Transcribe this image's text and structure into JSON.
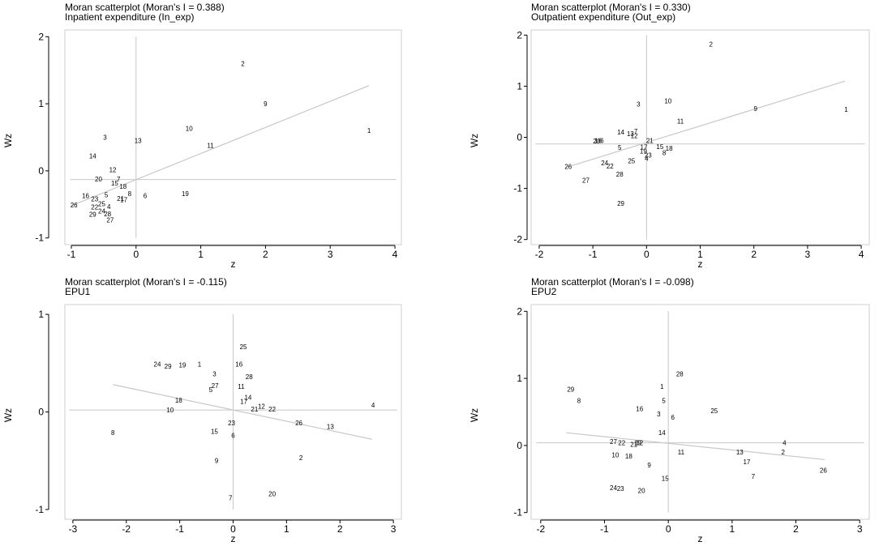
{
  "chart_data": [
    {
      "type": "scatter",
      "title": "Moran scatterplot (Moran's I = 0.388)",
      "subtitle": "Inpatient expenditure (In_exp)",
      "xlabel": "z",
      "ylabel": "Wz",
      "xlim": [
        -1.1,
        4.1
      ],
      "ylim": [
        -1.1,
        2.1
      ],
      "xticks": [
        -1,
        0,
        1,
        2,
        3,
        4
      ],
      "yticks": [
        -1,
        0,
        1,
        2
      ],
      "ref_x": 0,
      "ref_y": -0.13,
      "fit": {
        "x": [
          -1.0,
          3.6
        ],
        "y": [
          -0.52,
          1.27
        ]
      },
      "points": [
        {
          "label": "1",
          "x": 3.6,
          "y": 0.6
        },
        {
          "label": "2",
          "x": 1.65,
          "y": 1.6
        },
        {
          "label": "3",
          "x": -0.48,
          "y": 0.5
        },
        {
          "label": "4",
          "x": -0.42,
          "y": -0.53
        },
        {
          "label": "5",
          "x": -0.46,
          "y": -0.36
        },
        {
          "label": "6",
          "x": 0.14,
          "y": -0.37
        },
        {
          "label": "7",
          "x": -0.27,
          "y": -0.12
        },
        {
          "label": "8",
          "x": -0.1,
          "y": -0.34
        },
        {
          "label": "9",
          "x": 2.0,
          "y": 1.0
        },
        {
          "label": "10",
          "x": 0.82,
          "y": 0.63
        },
        {
          "label": "11",
          "x": 1.15,
          "y": 0.38
        },
        {
          "label": "12",
          "x": -0.36,
          "y": 0.02
        },
        {
          "label": "13",
          "x": 0.03,
          "y": 0.45
        },
        {
          "label": "14",
          "x": -0.67,
          "y": 0.22
        },
        {
          "label": "15",
          "x": -0.33,
          "y": -0.18
        },
        {
          "label": "16",
          "x": -0.78,
          "y": -0.37
        },
        {
          "label": "17",
          "x": -0.19,
          "y": -0.43
        },
        {
          "label": "18",
          "x": -0.2,
          "y": -0.23
        },
        {
          "label": "19",
          "x": 0.76,
          "y": -0.34
        },
        {
          "label": "20",
          "x": -0.58,
          "y": -0.12
        },
        {
          "label": "21",
          "x": -0.24,
          "y": -0.41
        },
        {
          "label": "22",
          "x": -0.64,
          "y": -0.54
        },
        {
          "label": "23",
          "x": -0.64,
          "y": -0.42
        },
        {
          "label": "24",
          "x": -0.53,
          "y": -0.6
        },
        {
          "label": "25",
          "x": -0.53,
          "y": -0.49
        },
        {
          "label": "26",
          "x": -0.96,
          "y": -0.51
        },
        {
          "label": "27",
          "x": -0.4,
          "y": -0.73
        },
        {
          "label": "28",
          "x": -0.44,
          "y": -0.64
        },
        {
          "label": "29",
          "x": -0.67,
          "y": -0.65
        }
      ]
    },
    {
      "type": "scatter",
      "title": "Moran scatterplot (Moran's I = 0.330)",
      "subtitle": "Outpatient expenditure (Out_exp)",
      "xlabel": "z",
      "ylabel": "Wz",
      "xlim": [
        -2.15,
        4.15
      ],
      "ylim": [
        -2.1,
        2.1
      ],
      "xticks": [
        -2,
        -1,
        0,
        1,
        2,
        3,
        4
      ],
      "yticks": [
        -2,
        -1,
        0,
        1,
        2
      ],
      "ref_x": 0,
      "ref_y": -0.13,
      "fit": {
        "x": [
          -1.5,
          3.7
        ],
        "y": [
          -0.59,
          1.1
        ]
      },
      "points": [
        {
          "label": "1",
          "x": 3.72,
          "y": 0.55
        },
        {
          "label": "2",
          "x": 1.2,
          "y": 1.82
        },
        {
          "label": "3",
          "x": -0.15,
          "y": 0.65
        },
        {
          "label": "4",
          "x": 0.0,
          "y": -0.41
        },
        {
          "label": "5",
          "x": -0.5,
          "y": -0.2
        },
        {
          "label": "6",
          "x": -0.83,
          "y": -0.06
        },
        {
          "label": "7",
          "x": -0.2,
          "y": 0.12
        },
        {
          "label": "8",
          "x": 0.33,
          "y": -0.3
        },
        {
          "label": "9",
          "x": 2.03,
          "y": 0.56
        },
        {
          "label": "10",
          "x": 0.4,
          "y": 0.71
        },
        {
          "label": "11",
          "x": 0.63,
          "y": 0.32
        },
        {
          "label": "12",
          "x": -0.23,
          "y": 0.03
        },
        {
          "label": "13",
          "x": -0.3,
          "y": 0.07
        },
        {
          "label": "14",
          "x": -0.48,
          "y": 0.1
        },
        {
          "label": "15",
          "x": 0.25,
          "y": -0.18
        },
        {
          "label": "16",
          "x": -0.9,
          "y": -0.06
        },
        {
          "label": "17",
          "x": -0.05,
          "y": -0.19
        },
        {
          "label": "18",
          "x": 0.42,
          "y": -0.21
        },
        {
          "label": "19",
          "x": -0.06,
          "y": -0.27
        },
        {
          "label": "20",
          "x": -0.93,
          "y": -0.07
        },
        {
          "label": "21",
          "x": 0.06,
          "y": -0.06
        },
        {
          "label": "22",
          "x": -0.68,
          "y": -0.56
        },
        {
          "label": "23",
          "x": 0.03,
          "y": -0.35
        },
        {
          "label": "24",
          "x": -0.78,
          "y": -0.5
        },
        {
          "label": "25",
          "x": -0.28,
          "y": -0.46
        },
        {
          "label": "26",
          "x": -1.46,
          "y": -0.57
        },
        {
          "label": "27",
          "x": -1.13,
          "y": -0.84
        },
        {
          "label": "28",
          "x": -0.5,
          "y": -0.72
        },
        {
          "label": "29",
          "x": -0.48,
          "y": -1.29
        }
      ]
    },
    {
      "type": "scatter",
      "title": "Moran scatterplot (Moran's I = -0.115)",
      "subtitle": "EPU1",
      "xlabel": "z",
      "ylabel": "Wz",
      "xlim": [
        -3.15,
        3.15
      ],
      "ylim": [
        -1.1,
        1.1
      ],
      "xticks": [
        -3,
        -2,
        -1,
        0,
        1,
        2,
        3
      ],
      "yticks": [
        -1,
        0,
        1
      ],
      "ref_x": 0,
      "ref_y": 0.02,
      "fit": {
        "x": [
          -2.25,
          2.6
        ],
        "y": [
          0.28,
          -0.28
        ]
      },
      "points": [
        {
          "label": "1",
          "x": -0.63,
          "y": 0.49
        },
        {
          "label": "2",
          "x": 1.27,
          "y": -0.47
        },
        {
          "label": "3",
          "x": -0.35,
          "y": 0.39
        },
        {
          "label": "4",
          "x": 2.62,
          "y": 0.07
        },
        {
          "label": "5",
          "x": -0.42,
          "y": 0.23
        },
        {
          "label": "6",
          "x": 0.0,
          "y": -0.24
        },
        {
          "label": "7",
          "x": -0.05,
          "y": -0.88
        },
        {
          "label": "8",
          "x": -2.25,
          "y": -0.21
        },
        {
          "label": "9",
          "x": -0.31,
          "y": -0.5
        },
        {
          "label": "10",
          "x": -1.18,
          "y": 0.02
        },
        {
          "label": "11",
          "x": 0.15,
          "y": 0.26
        },
        {
          "label": "12",
          "x": 0.53,
          "y": 0.06
        },
        {
          "label": "13",
          "x": 1.82,
          "y": -0.15
        },
        {
          "label": "14",
          "x": 0.28,
          "y": 0.15
        },
        {
          "label": "15",
          "x": -0.35,
          "y": -0.2
        },
        {
          "label": "16",
          "x": 0.11,
          "y": 0.49
        },
        {
          "label": "17",
          "x": 0.2,
          "y": 0.11
        },
        {
          "label": "18",
          "x": -1.02,
          "y": 0.12
        },
        {
          "label": "19",
          "x": -0.95,
          "y": 0.48
        },
        {
          "label": "20",
          "x": 0.73,
          "y": -0.84
        },
        {
          "label": "21",
          "x": 0.4,
          "y": 0.03
        },
        {
          "label": "22",
          "x": 0.73,
          "y": 0.03
        },
        {
          "label": "23",
          "x": -0.03,
          "y": -0.11
        },
        {
          "label": "24",
          "x": -1.42,
          "y": 0.49
        },
        {
          "label": "25",
          "x": 0.19,
          "y": 0.67
        },
        {
          "label": "26",
          "x": 1.23,
          "y": -0.11
        },
        {
          "label": "27",
          "x": -0.34,
          "y": 0.27
        },
        {
          "label": "28",
          "x": 0.3,
          "y": 0.36
        },
        {
          "label": "29",
          "x": -1.22,
          "y": 0.47
        }
      ]
    },
    {
      "type": "scatter",
      "title": "Moran scatterplot (Moran's I = -0.098)",
      "subtitle": "EPU2",
      "xlabel": "z",
      "ylabel": "Wz",
      "xlim": [
        -2.15,
        3.15
      ],
      "ylim": [
        -1.1,
        2.1
      ],
      "xticks": [
        -2,
        -1,
        0,
        1,
        2,
        3
      ],
      "yticks": [
        -1,
        0,
        1,
        2
      ],
      "ref_x": 0,
      "ref_y": 0.04,
      "fit": {
        "x": [
          -1.6,
          2.45
        ],
        "y": [
          0.19,
          -0.21
        ]
      },
      "points": [
        {
          "label": "1",
          "x": -0.1,
          "y": 0.88
        },
        {
          "label": "2",
          "x": 1.8,
          "y": -0.1
        },
        {
          "label": "3",
          "x": -0.15,
          "y": 0.47
        },
        {
          "label": "4",
          "x": 1.82,
          "y": 0.04
        },
        {
          "label": "5",
          "x": -0.07,
          "y": 0.67
        },
        {
          "label": "6",
          "x": 0.07,
          "y": 0.42
        },
        {
          "label": "7",
          "x": 1.33,
          "y": -0.46
        },
        {
          "label": "8",
          "x": -1.4,
          "y": 0.67
        },
        {
          "label": "9",
          "x": -0.3,
          "y": -0.29
        },
        {
          "label": "10",
          "x": -0.83,
          "y": -0.14
        },
        {
          "label": "11",
          "x": 0.2,
          "y": -0.1
        },
        {
          "label": "12",
          "x": -0.45,
          "y": 0.04
        },
        {
          "label": "13",
          "x": 1.12,
          "y": -0.1
        },
        {
          "label": "14",
          "x": -0.1,
          "y": 0.19
        },
        {
          "label": "15",
          "x": -0.05,
          "y": -0.49
        },
        {
          "label": "16",
          "x": -0.45,
          "y": 0.55
        },
        {
          "label": "17",
          "x": 1.23,
          "y": -0.24
        },
        {
          "label": "18",
          "x": -0.62,
          "y": -0.16
        },
        {
          "label": "19",
          "x": -0.48,
          "y": 0.04
        },
        {
          "label": "20",
          "x": -0.42,
          "y": -0.67
        },
        {
          "label": "21",
          "x": -0.54,
          "y": 0.02
        },
        {
          "label": "22",
          "x": -0.73,
          "y": 0.04
        },
        {
          "label": "23",
          "x": -0.75,
          "y": -0.64
        },
        {
          "label": "24",
          "x": -0.86,
          "y": -0.63
        },
        {
          "label": "25",
          "x": 0.72,
          "y": 0.52
        },
        {
          "label": "26",
          "x": 2.43,
          "y": -0.37
        },
        {
          "label": "27",
          "x": -0.86,
          "y": 0.06
        },
        {
          "label": "28",
          "x": 0.18,
          "y": 1.07
        },
        {
          "label": "29",
          "x": -1.53,
          "y": 0.84
        }
      ]
    }
  ]
}
